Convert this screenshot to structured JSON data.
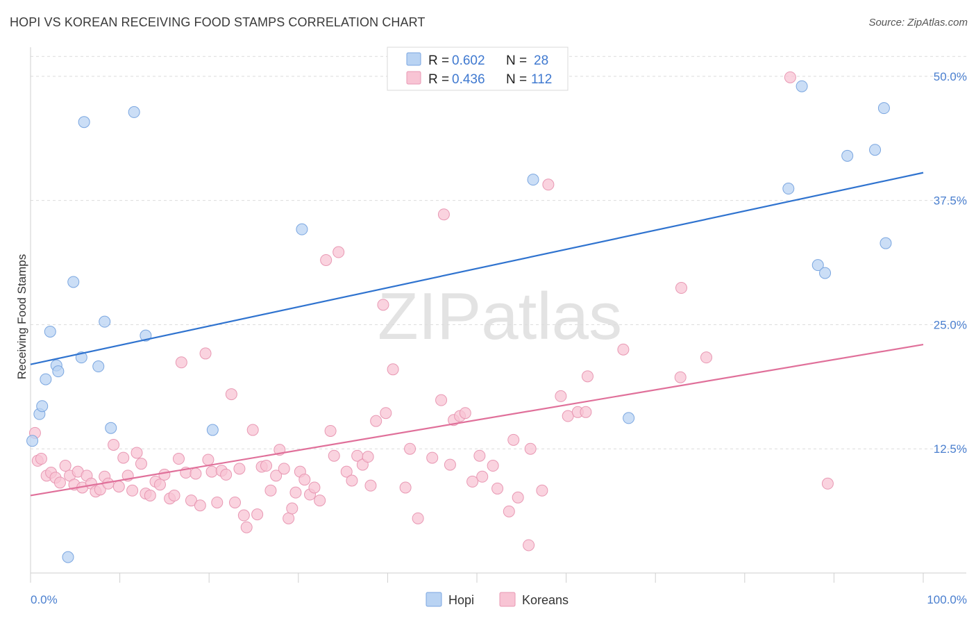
{
  "chart_data": {
    "type": "scatter",
    "title": "HOPI VS KOREAN RECEIVING FOOD STAMPS CORRELATION CHART",
    "source": "Source: ZipAtlas.com",
    "xlabel": "",
    "ylabel": "Receiving Food Stamps",
    "xlim": [
      0,
      100
    ],
    "ylim": [
      0,
      53
    ],
    "x_tick_labels": [
      "0.0%",
      "100.0%"
    ],
    "y_ticks": [
      12.5,
      25.0,
      37.5,
      50.0
    ],
    "y_tick_labels": [
      "12.5%",
      "25.0%",
      "37.5%",
      "50.0%"
    ],
    "grid": "horizontal dashed",
    "legend_position": "top-center",
    "watermark": "ZIPatlas",
    "colors": {
      "hopi_fill": "#b9d3f3",
      "hopi_stroke": "#7aa6e0",
      "hopi_line": "#2f73cf",
      "korean_fill": "#f8c4d4",
      "korean_stroke": "#e898b3",
      "korean_line": "#e0709a",
      "axis_label_blue": "#4a7fcf"
    },
    "stats": [
      {
        "r_label": "R =",
        "r_value": "0.602",
        "n_label": "N =",
        "n_value": "28"
      },
      {
        "r_label": "R =",
        "r_value": "0.436",
        "n_label": "N =",
        "n_value": "112"
      }
    ],
    "series": [
      {
        "name": "Hopi",
        "trend": {
          "x": [
            0,
            100
          ],
          "y": [
            21.0,
            40.3
          ]
        },
        "points": [
          [
            0.2,
            13.3
          ],
          [
            1.0,
            16.0
          ],
          [
            1.3,
            16.8
          ],
          [
            1.7,
            19.5
          ],
          [
            2.2,
            24.3
          ],
          [
            2.9,
            20.9
          ],
          [
            3.1,
            20.3
          ],
          [
            4.2,
            1.6
          ],
          [
            4.8,
            29.3
          ],
          [
            5.7,
            21.7
          ],
          [
            6.0,
            45.4
          ],
          [
            7.6,
            20.8
          ],
          [
            8.3,
            25.3
          ],
          [
            9.0,
            14.6
          ],
          [
            11.6,
            46.4
          ],
          [
            12.9,
            23.9
          ],
          [
            20.4,
            14.4
          ],
          [
            30.4,
            34.6
          ],
          [
            56.3,
            39.6
          ],
          [
            67.0,
            15.6
          ],
          [
            84.9,
            38.7
          ],
          [
            86.4,
            49.0
          ],
          [
            88.2,
            31.0
          ],
          [
            89.0,
            30.2
          ],
          [
            91.5,
            42.0
          ],
          [
            94.6,
            42.6
          ],
          [
            95.6,
            46.8
          ],
          [
            95.8,
            33.2
          ]
        ]
      },
      {
        "name": "Koreans",
        "trend": {
          "x": [
            0,
            100
          ],
          "y": [
            7.8,
            23.0
          ]
        },
        "points": [
          [
            0.5,
            14.1
          ],
          [
            0.8,
            11.3
          ],
          [
            1.2,
            11.5
          ],
          [
            1.8,
            9.8
          ],
          [
            2.3,
            10.1
          ],
          [
            2.8,
            9.6
          ],
          [
            3.3,
            9.1
          ],
          [
            3.9,
            10.8
          ],
          [
            4.4,
            9.8
          ],
          [
            4.9,
            8.9
          ],
          [
            5.3,
            10.2
          ],
          [
            5.8,
            8.6
          ],
          [
            6.3,
            9.8
          ],
          [
            6.8,
            9.0
          ],
          [
            7.3,
            8.2
          ],
          [
            7.8,
            8.4
          ],
          [
            8.3,
            9.7
          ],
          [
            8.7,
            9.0
          ],
          [
            9.3,
            12.9
          ],
          [
            9.9,
            8.7
          ],
          [
            10.4,
            11.6
          ],
          [
            10.9,
            9.8
          ],
          [
            11.4,
            8.3
          ],
          [
            11.9,
            12.1
          ],
          [
            12.4,
            11.0
          ],
          [
            12.9,
            8.0
          ],
          [
            13.4,
            7.8
          ],
          [
            14.0,
            9.2
          ],
          [
            14.5,
            8.9
          ],
          [
            15.0,
            9.9
          ],
          [
            15.6,
            7.5
          ],
          [
            16.1,
            7.8
          ],
          [
            16.6,
            11.5
          ],
          [
            16.9,
            21.2
          ],
          [
            17.4,
            10.1
          ],
          [
            18.0,
            7.3
          ],
          [
            18.5,
            10.0
          ],
          [
            19.0,
            6.8
          ],
          [
            19.6,
            22.1
          ],
          [
            19.9,
            11.4
          ],
          [
            20.3,
            10.2
          ],
          [
            20.9,
            7.1
          ],
          [
            21.4,
            10.3
          ],
          [
            21.9,
            9.9
          ],
          [
            22.5,
            18.0
          ],
          [
            22.9,
            7.1
          ],
          [
            23.4,
            10.5
          ],
          [
            23.9,
            5.8
          ],
          [
            24.2,
            4.6
          ],
          [
            24.9,
            14.4
          ],
          [
            25.4,
            5.9
          ],
          [
            25.9,
            10.7
          ],
          [
            26.4,
            10.8
          ],
          [
            26.9,
            8.3
          ],
          [
            27.5,
            9.8
          ],
          [
            27.9,
            12.4
          ],
          [
            28.4,
            10.5
          ],
          [
            28.9,
            5.5
          ],
          [
            29.3,
            6.5
          ],
          [
            29.7,
            8.1
          ],
          [
            30.2,
            10.2
          ],
          [
            30.7,
            9.4
          ],
          [
            31.3,
            7.9
          ],
          [
            31.8,
            8.6
          ],
          [
            32.4,
            7.3
          ],
          [
            33.1,
            31.5
          ],
          [
            33.6,
            14.3
          ],
          [
            34.0,
            11.8
          ],
          [
            34.5,
            32.3
          ],
          [
            35.4,
            10.2
          ],
          [
            36.0,
            9.3
          ],
          [
            36.6,
            11.8
          ],
          [
            37.2,
            10.9
          ],
          [
            37.8,
            11.7
          ],
          [
            38.1,
            8.8
          ],
          [
            38.7,
            15.3
          ],
          [
            39.5,
            27.0
          ],
          [
            39.8,
            16.1
          ],
          [
            40.6,
            20.5
          ],
          [
            42.0,
            8.6
          ],
          [
            42.5,
            12.5
          ],
          [
            43.4,
            5.5
          ],
          [
            45.0,
            11.6
          ],
          [
            46.0,
            17.4
          ],
          [
            46.3,
            36.1
          ],
          [
            47.0,
            10.9
          ],
          [
            47.4,
            15.4
          ],
          [
            48.1,
            15.8
          ],
          [
            48.7,
            16.1
          ],
          [
            49.5,
            9.2
          ],
          [
            50.3,
            11.8
          ],
          [
            50.6,
            9.7
          ],
          [
            51.8,
            10.8
          ],
          [
            52.3,
            8.5
          ],
          [
            53.6,
            6.2
          ],
          [
            54.1,
            13.4
          ],
          [
            54.6,
            7.6
          ],
          [
            55.8,
            2.8
          ],
          [
            56.0,
            12.5
          ],
          [
            57.3,
            8.3
          ],
          [
            58.0,
            39.1
          ],
          [
            59.4,
            17.8
          ],
          [
            60.2,
            15.8
          ],
          [
            61.3,
            16.2
          ],
          [
            62.2,
            16.2
          ],
          [
            62.4,
            19.8
          ],
          [
            66.4,
            22.5
          ],
          [
            72.9,
            28.7
          ],
          [
            72.8,
            19.7
          ],
          [
            75.7,
            21.7
          ],
          [
            85.1,
            49.9
          ],
          [
            89.3,
            9.0
          ]
        ]
      }
    ]
  }
}
